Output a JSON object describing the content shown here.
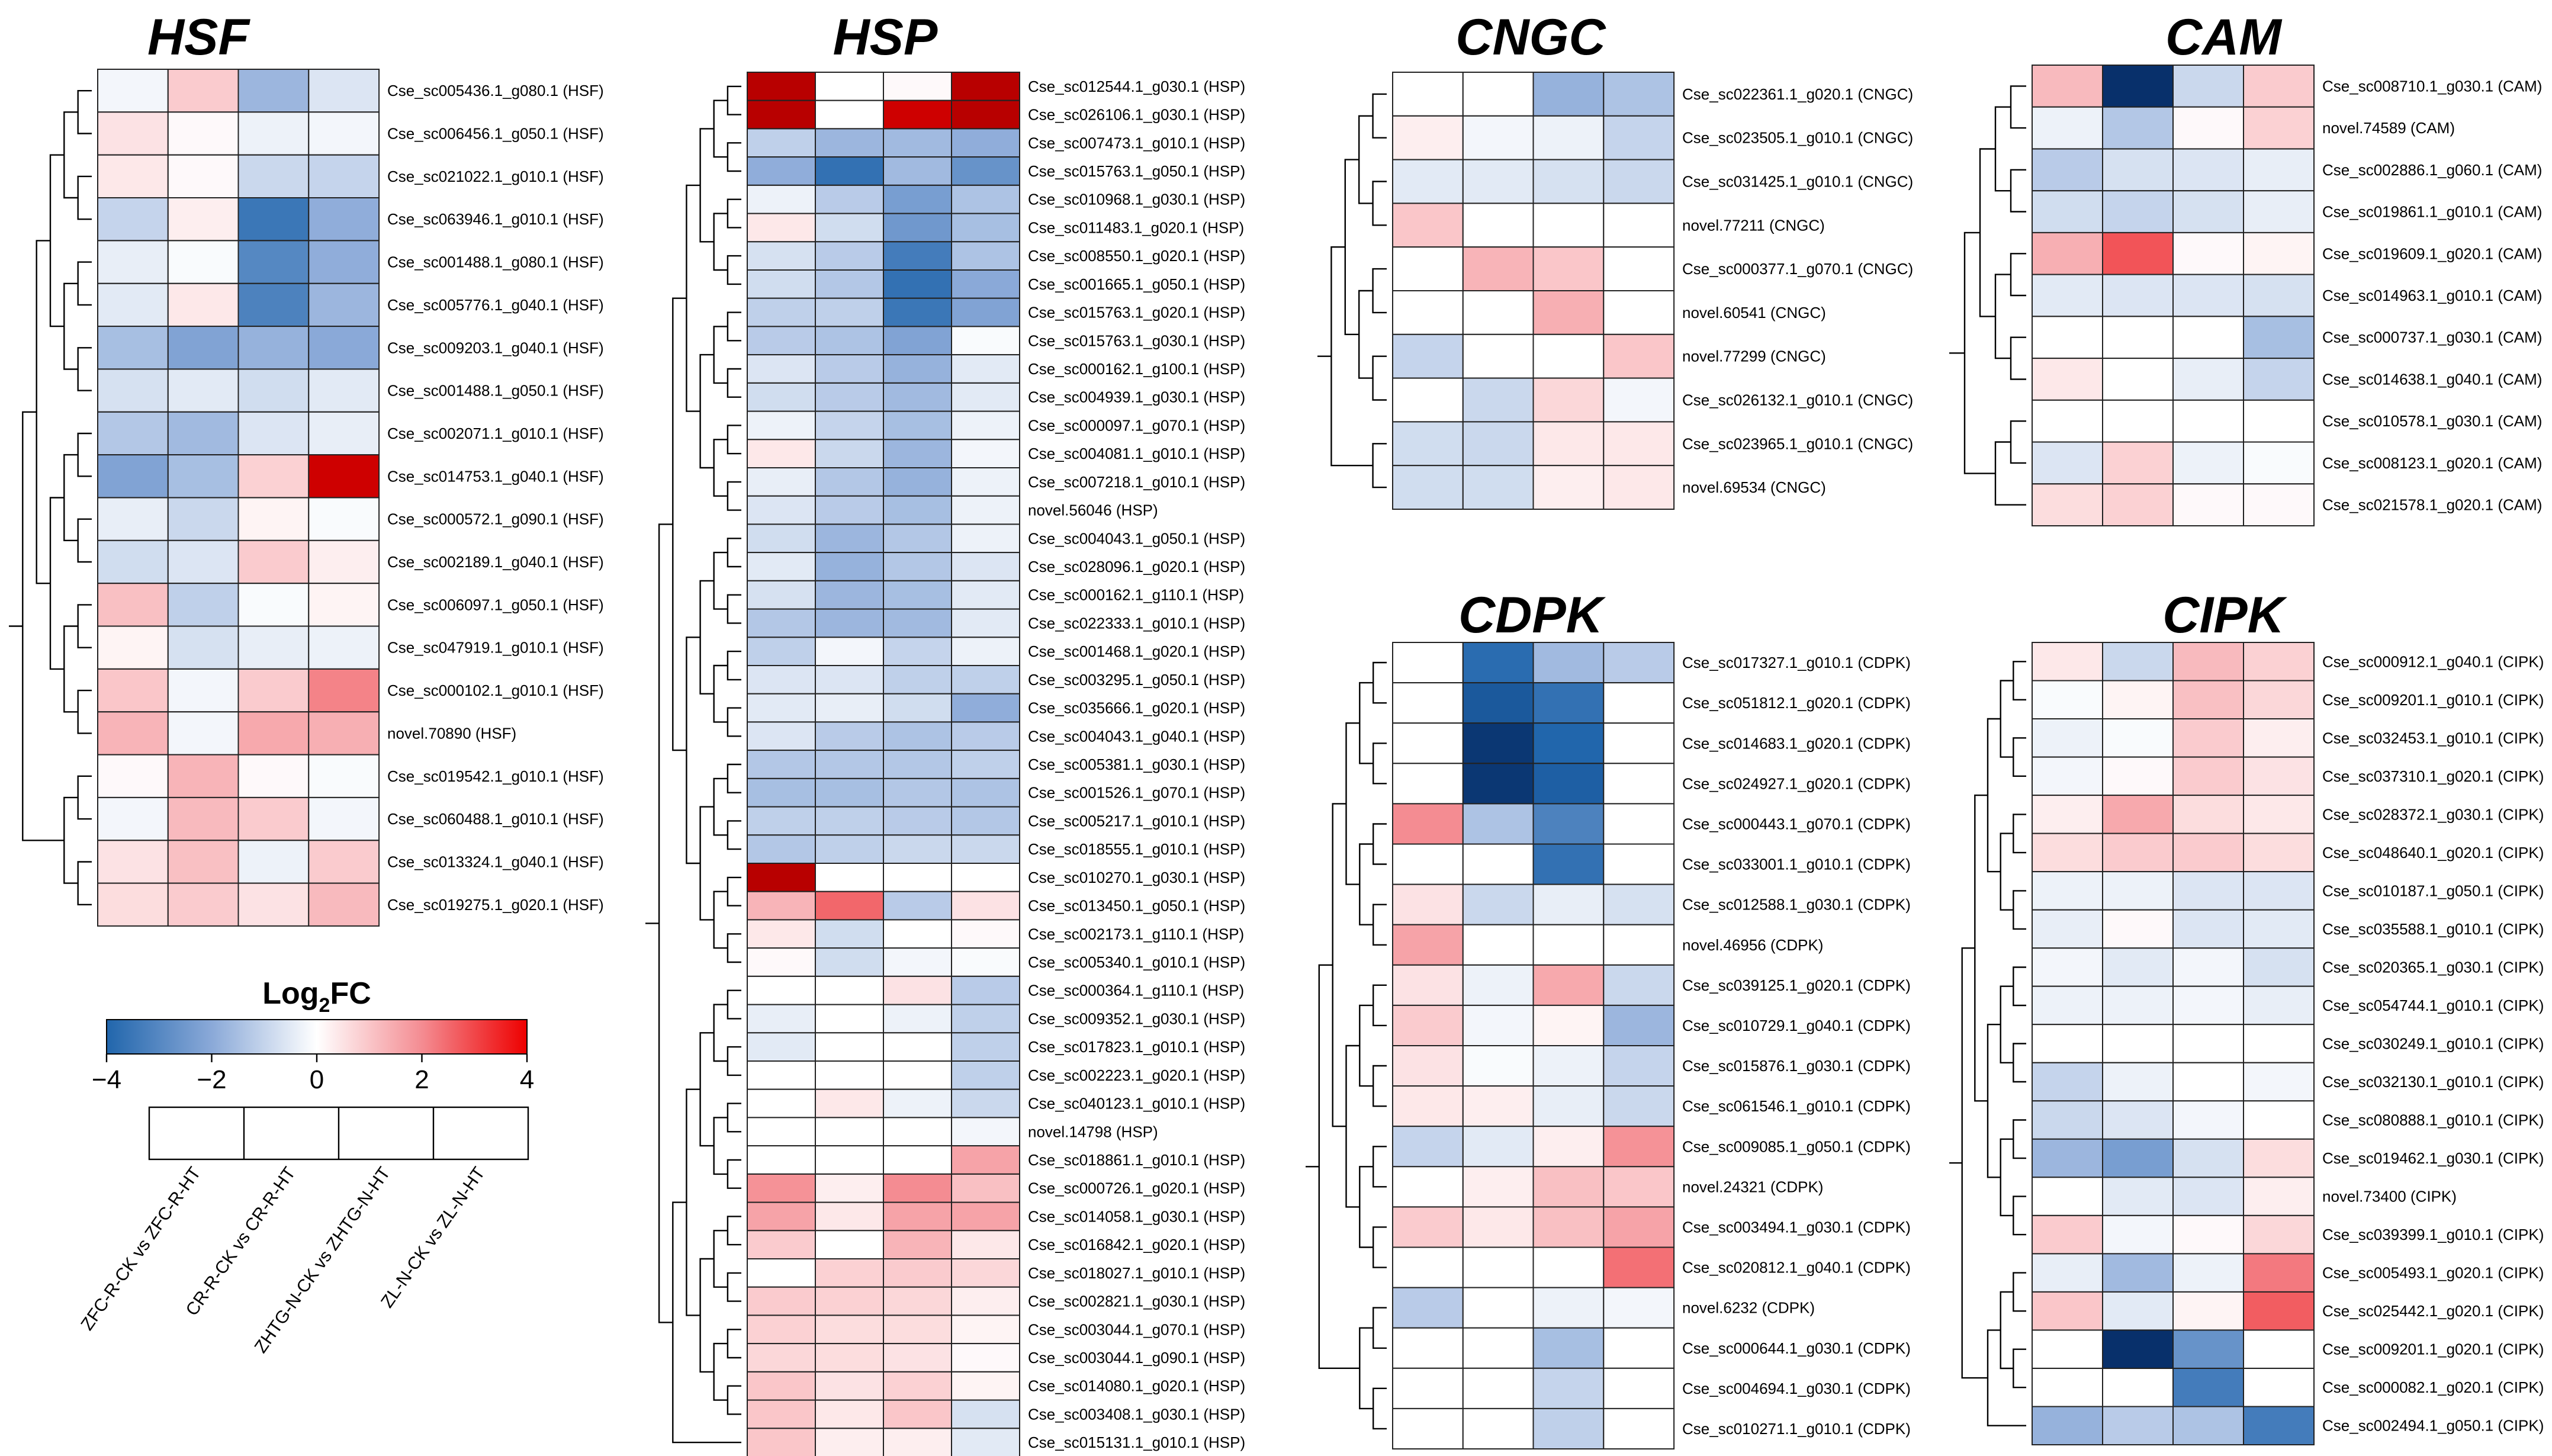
{
  "colors": {
    "low": "#08306b",
    "mid_low": "#2166ac",
    "mid": "#ffffff",
    "high": "#ee0000",
    "deep_high": "#b80000"
  },
  "chart_data": [
    {
      "type": "heatmap",
      "title": "HSF",
      "rows": [
        "Cse_sc005436.1_g080.1 (HSF)",
        "Cse_sc006456.1_g050.1 (HSF)",
        "Cse_sc021022.1_g010.1 (HSF)",
        "Cse_sc063946.1_g010.1 (HSF)",
        "Cse_sc001488.1_g080.1 (HSF)",
        "Cse_sc005776.1_g040.1 (HSF)",
        "Cse_sc009203.1_g040.1 (HSF)",
        "Cse_sc001488.1_g050.1 (HSF)",
        "Cse_sc002071.1_g010.1 (HSF)",
        "Cse_sc014753.1_g040.1 (HSF)",
        "Cse_sc000572.1_g090.1 (HSF)",
        "Cse_sc002189.1_g040.1 (HSF)",
        "Cse_sc006097.1_g050.1 (HSF)",
        "Cse_sc047919.1_g010.1 (HSF)",
        "Cse_sc000102.1_g010.1 (HSF)",
        "novel.70890 (HSF)",
        "Cse_sc019542.1_g010.1 (HSF)",
        "Cse_sc060488.1_g010.1 (HSF)",
        "Cse_sc013324.1_g040.1 (HSF)",
        "Cse_sc019275.1_g020.1 (HSF)"
      ],
      "values": [
        [
          -0.2,
          0.9,
          -1.7,
          -0.6
        ],
        [
          0.5,
          0.1,
          -0.3,
          -0.2
        ],
        [
          0.4,
          0.1,
          -0.9,
          -1.0
        ],
        [
          -1.0,
          0.3,
          -2.9,
          -1.9
        ],
        [
          -0.4,
          -0.1,
          -2.6,
          -1.9
        ],
        [
          -0.5,
          0.4,
          -2.7,
          -1.7
        ],
        [
          -1.5,
          -2.1,
          -1.8,
          -2.0
        ],
        [
          -0.7,
          -0.5,
          -0.8,
          -0.5
        ],
        [
          -1.3,
          -1.6,
          -0.6,
          -0.4
        ],
        [
          -2.1,
          -1.5,
          0.8,
          3.8
        ],
        [
          -0.4,
          -0.9,
          0.2,
          -0.1
        ],
        [
          -0.8,
          -0.6,
          0.9,
          0.3
        ],
        [
          1.1,
          -1.1,
          -0.1,
          0.2
        ],
        [
          0.2,
          -0.7,
          -0.4,
          -0.3
        ],
        [
          1.0,
          -0.2,
          0.9,
          2.1
        ],
        [
          1.3,
          -0.2,
          1.5,
          1.4
        ],
        [
          0.1,
          1.3,
          0.1,
          -0.1
        ],
        [
          -0.2,
          1.2,
          0.9,
          -0.2
        ],
        [
          0.5,
          1.1,
          -0.3,
          0.9
        ],
        [
          0.6,
          0.9,
          0.5,
          1.2
        ]
      ]
    },
    {
      "type": "heatmap",
      "title": "HSP",
      "rows": [
        "Cse_sc012544.1_g030.1 (HSP)",
        "Cse_sc026106.1_g030.1 (HSP)",
        "Cse_sc007473.1_g010.1 (HSP)",
        "Cse_sc015763.1_g050.1 (HSP)",
        "Cse_sc010968.1_g030.1 (HSP)",
        "Cse_sc011483.1_g020.1 (HSP)",
        "Cse_sc008550.1_g020.1 (HSP)",
        "Cse_sc001665.1_g050.1 (HSP)",
        "Cse_sc015763.1_g020.1 (HSP)",
        "Cse_sc015763.1_g030.1 (HSP)",
        "Cse_sc000162.1_g100.1 (HSP)",
        "Cse_sc004939.1_g030.1 (HSP)",
        "Cse_sc000097.1_g070.1 (HSP)",
        "Cse_sc004081.1_g010.1 (HSP)",
        "Cse_sc007218.1_g010.1 (HSP)",
        "novel.56046 (HSP)",
        "Cse_sc004043.1_g050.1 (HSP)",
        "Cse_sc028096.1_g020.1 (HSP)",
        "Cse_sc000162.1_g110.1 (HSP)",
        "Cse_sc022333.1_g010.1 (HSP)",
        "Cse_sc001468.1_g020.1 (HSP)",
        "Cse_sc003295.1_g050.1 (HSP)",
        "Cse_sc035666.1_g020.1 (HSP)",
        "Cse_sc004043.1_g040.1 (HSP)",
        "Cse_sc005381.1_g030.1 (HSP)",
        "Cse_sc001526.1_g070.1 (HSP)",
        "Cse_sc005217.1_g010.1 (HSP)",
        "Cse_sc018555.1_g010.1 (HSP)",
        "Cse_sc010270.1_g030.1 (HSP)",
        "Cse_sc013450.1_g050.1 (HSP)",
        "Cse_sc002173.1_g110.1 (HSP)",
        "Cse_sc005340.1_g010.1 (HSP)",
        "Cse_sc000364.1_g110.1 (HSP)",
        "Cse_sc009352.1_g030.1 (HSP)",
        "Cse_sc017823.1_g010.1 (HSP)",
        "Cse_sc002223.1_g020.1 (HSP)",
        "Cse_sc040123.1_g010.1 (HSP)",
        "novel.14798 (HSP)",
        "Cse_sc018861.1_g010.1 (HSP)",
        "Cse_sc000726.1_g020.1 (HSP)",
        "Cse_sc014058.1_g030.1 (HSP)",
        "Cse_sc016842.1_g020.1 (HSP)",
        "Cse_sc018027.1_g010.1 (HSP)",
        "Cse_sc002821.1_g030.1 (HSP)",
        "Cse_sc003044.1_g070.1 (HSP)",
        "Cse_sc003044.1_g090.1 (HSP)",
        "Cse_sc014080.1_g020.1 (HSP)",
        "Cse_sc003408.1_g030.1 (HSP)",
        "Cse_sc015131.1_g010.1 (HSP)"
      ],
      "values": [
        [
          4.0,
          0.0,
          0.1,
          4.0
        ],
        [
          4.0,
          0.0,
          3.8,
          4.0
        ],
        [
          -1.1,
          -1.7,
          -1.6,
          -1.9
        ],
        [
          -1.9,
          -3.0,
          -1.6,
          -2.4
        ],
        [
          -0.3,
          -1.2,
          -2.2,
          -1.4
        ],
        [
          0.4,
          -0.8,
          -2.3,
          -1.5
        ],
        [
          -0.7,
          -1.2,
          -2.8,
          -1.4
        ],
        [
          -0.8,
          -1.3,
          -3.0,
          -2.0
        ],
        [
          -1.1,
          -1.1,
          -2.9,
          -2.1
        ],
        [
          -1.2,
          -1.4,
          -2.1,
          -0.1
        ],
        [
          -0.6,
          -1.2,
          -1.8,
          -0.5
        ],
        [
          -0.8,
          -1.2,
          -1.6,
          -0.5
        ],
        [
          -0.3,
          -1.0,
          -1.5,
          -0.3
        ],
        [
          0.4,
          -0.9,
          -1.7,
          -0.2
        ],
        [
          -0.4,
          -1.3,
          -1.8,
          -0.3
        ],
        [
          -0.6,
          -1.2,
          -1.5,
          -0.3
        ],
        [
          -0.8,
          -1.7,
          -1.3,
          -0.3
        ],
        [
          -0.5,
          -1.8,
          -1.3,
          -0.6
        ],
        [
          -0.7,
          -1.7,
          -1.5,
          -0.5
        ],
        [
          -1.3,
          -1.7,
          -1.6,
          -0.5
        ],
        [
          -1.1,
          -0.2,
          -1.0,
          -0.3
        ],
        [
          -0.6,
          -0.6,
          -1.1,
          -1.1
        ],
        [
          -0.5,
          -0.4,
          -0.8,
          -1.9
        ],
        [
          -0.6,
          -1.2,
          -1.4,
          -1.2
        ],
        [
          -1.3,
          -1.3,
          -1.3,
          -1.1
        ],
        [
          -1.5,
          -1.5,
          -1.3,
          -1.4
        ],
        [
          -1.1,
          -1.1,
          -1.2,
          -1.3
        ],
        [
          -1.3,
          -1.1,
          -0.9,
          -0.9
        ],
        [
          4.0,
          0.0,
          0.0,
          0.0
        ],
        [
          1.3,
          2.4,
          -1.2,
          0.5
        ],
        [
          0.4,
          -0.8,
          0.0,
          0.1
        ],
        [
          0.1,
          -0.8,
          -0.2,
          -0.1
        ],
        [
          0.0,
          0.0,
          0.5,
          -1.2
        ],
        [
          -0.4,
          0.0,
          -0.3,
          -1.1
        ],
        [
          -0.5,
          0.0,
          0.0,
          -1.1
        ],
        [
          0.0,
          0.0,
          0.0,
          -1.1
        ],
        [
          0.0,
          0.4,
          -0.3,
          -0.9
        ],
        [
          0.0,
          0.0,
          0.0,
          -0.2
        ],
        [
          0.0,
          0.0,
          0.0,
          1.6
        ],
        [
          1.9,
          0.3,
          2.0,
          1.1
        ],
        [
          1.6,
          0.4,
          1.6,
          1.6
        ],
        [
          0.9,
          0.0,
          1.3,
          0.4
        ],
        [
          0.0,
          0.8,
          0.9,
          0.7
        ],
        [
          0.9,
          0.8,
          0.7,
          0.3
        ],
        [
          0.8,
          0.6,
          0.6,
          0.2
        ],
        [
          0.7,
          0.6,
          0.5,
          0.1
        ],
        [
          1.0,
          0.5,
          0.8,
          0.2
        ],
        [
          1.0,
          0.4,
          1.0,
          -0.7
        ],
        [
          1.0,
          0.3,
          0.3,
          -0.5
        ]
      ]
    },
    {
      "type": "heatmap",
      "title": "CNGC",
      "rows": [
        "Cse_sc022361.1_g020.1 (CNGC)",
        "Cse_sc023505.1_g010.1 (CNGC)",
        "Cse_sc031425.1_g010.1 (CNGC)",
        "novel.77211 (CNGC)",
        "Cse_sc000377.1_g070.1 (CNGC)",
        "novel.60541 (CNGC)",
        "novel.77299 (CNGC)",
        "Cse_sc026132.1_g010.1 (CNGC)",
        "Cse_sc023965.1_g010.1 (CNGC)",
        "novel.69534 (CNGC)"
      ],
      "values": [
        [
          0.0,
          0.0,
          -1.8,
          -1.4
        ],
        [
          0.3,
          -0.2,
          -0.3,
          -1.0
        ],
        [
          -0.5,
          -0.5,
          -0.7,
          -0.9
        ],
        [
          1.0,
          0.0,
          0.0,
          0.0
        ],
        [
          0.0,
          1.3,
          1.0,
          0.0
        ],
        [
          0.0,
          0.0,
          1.4,
          0.0
        ],
        [
          -1.0,
          0.0,
          0.0,
          1.0
        ],
        [
          0.0,
          -0.9,
          0.7,
          -0.2
        ],
        [
          -0.8,
          -0.9,
          0.4,
          0.4
        ],
        [
          -0.8,
          -0.8,
          0.3,
          0.4
        ]
      ]
    },
    {
      "type": "heatmap",
      "title": "CAM",
      "rows": [
        "Cse_sc008710.1_g030.1 (CAM)",
        "novel.74589 (CAM)",
        "Cse_sc002886.1_g060.1 (CAM)",
        "Cse_sc019861.1_g010.1 (CAM)",
        "Cse_sc019609.1_g020.1 (CAM)",
        "Cse_sc014963.1_g010.1 (CAM)",
        "Cse_sc000737.1_g030.1 (CAM)",
        "Cse_sc014638.1_g040.1 (CAM)",
        "Cse_sc010578.1_g030.1 (CAM)",
        "Cse_sc008123.1_g020.1 (CAM)",
        "Cse_sc021578.1_g020.1 (CAM)"
      ],
      "values": [
        [
          1.2,
          -4.0,
          -0.9,
          0.9
        ],
        [
          -0.3,
          -1.3,
          0.1,
          0.8
        ],
        [
          -1.2,
          -0.7,
          -0.6,
          -0.4
        ],
        [
          -0.8,
          -1.0,
          -0.7,
          -0.4
        ],
        [
          1.4,
          2.6,
          0.1,
          0.2
        ],
        [
          -0.5,
          -0.6,
          -0.6,
          -0.7
        ],
        [
          0.0,
          0.0,
          0.0,
          -1.5
        ],
        [
          0.4,
          0.0,
          -0.4,
          -1.0
        ],
        [
          0.0,
          0.0,
          0.0,
          0.0
        ],
        [
          -0.6,
          0.8,
          -0.3,
          -0.1
        ],
        [
          0.6,
          0.8,
          0.1,
          0.1
        ]
      ]
    },
    {
      "type": "heatmap",
      "title": "CDPK",
      "rows": [
        "Cse_sc017327.1_g010.1 (CDPK)",
        "Cse_sc051812.1_g020.1 (CDPK)",
        "Cse_sc014683.1_g020.1 (CDPK)",
        "Cse_sc024927.1_g020.1 (CDPK)",
        "Cse_sc000443.1_g070.1 (CDPK)",
        "Cse_sc033001.1_g010.1 (CDPK)",
        "Cse_sc012588.1_g030.1 (CDPK)",
        "novel.46956 (CDPK)",
        "Cse_sc039125.1_g020.1 (CDPK)",
        "Cse_sc010729.1_g040.1 (CDPK)",
        "Cse_sc015876.1_g030.1 (CDPK)",
        "Cse_sc061546.1_g010.1 (CDPK)",
        "Cse_sc009085.1_g050.1 (CDPK)",
        "novel.24321 (CDPK)",
        "Cse_sc003494.1_g030.1 (CDPK)",
        "Cse_sc020812.1_g040.1 (CDPK)",
        "novel.6232 (CDPK)",
        "Cse_sc000644.1_g030.1 (CDPK)",
        "Cse_sc004694.1_g030.1 (CDPK)",
        "Cse_sc010271.1_g010.1 (CDPK)"
      ],
      "values": [
        [
          0.0,
          -3.1,
          -1.6,
          -1.2
        ],
        [
          0.0,
          -3.4,
          -3.0,
          0.0
        ],
        [
          0.0,
          -3.9,
          -3.2,
          0.0
        ],
        [
          0.0,
          -3.9,
          -3.3,
          0.0
        ],
        [
          2.0,
          -1.4,
          -2.7,
          0.0
        ],
        [
          0.0,
          0.0,
          -3.0,
          0.0
        ],
        [
          0.5,
          -0.9,
          -0.4,
          -0.7
        ],
        [
          1.6,
          0.0,
          0.0,
          0.0
        ],
        [
          0.5,
          -0.3,
          1.5,
          -0.9
        ],
        [
          0.9,
          -0.2,
          0.2,
          -1.7
        ],
        [
          0.5,
          -0.1,
          -0.3,
          -1.0
        ],
        [
          0.4,
          0.3,
          -0.4,
          -0.9
        ],
        [
          -1.0,
          -0.5,
          0.3,
          1.9
        ],
        [
          0.0,
          0.3,
          1.1,
          1.0
        ],
        [
          0.9,
          0.4,
          1.1,
          1.6
        ],
        [
          0.0,
          0.0,
          0.0,
          2.3
        ],
        [
          -1.2,
          0.0,
          -0.3,
          -0.2
        ],
        [
          0.0,
          0.0,
          -1.5,
          0.0
        ],
        [
          0.0,
          0.0,
          -1.0,
          0.0
        ],
        [
          0.0,
          0.0,
          -1.1,
          0.0
        ]
      ]
    },
    {
      "type": "heatmap",
      "title": "CIPK",
      "rows": [
        "Cse_sc000912.1_g040.1 (CIPK)",
        "Cse_sc009201.1_g010.1 (CIPK)",
        "Cse_sc032453.1_g010.1 (CIPK)",
        "Cse_sc037310.1_g020.1 (CIPK)",
        "Cse_sc028372.1_g030.1 (CIPK)",
        "Cse_sc048640.1_g020.1 (CIPK)",
        "Cse_sc010187.1_g050.1 (CIPK)",
        "Cse_sc035588.1_g010.1 (CIPK)",
        "Cse_sc020365.1_g030.1 (CIPK)",
        "Cse_sc054744.1_g010.1 (CIPK)",
        "Cse_sc030249.1_g010.1 (CIPK)",
        "Cse_sc032130.1_g010.1 (CIPK)",
        "Cse_sc080888.1_g010.1 (CIPK)",
        "Cse_sc019462.1_g030.1 (CIPK)",
        "novel.73400 (CIPK)",
        "Cse_sc039399.1_g010.1 (CIPK)",
        "Cse_sc005493.1_g020.1 (CIPK)",
        "Cse_sc025442.1_g020.1 (CIPK)",
        "Cse_sc009201.1_g020.1 (CIPK)",
        "Cse_sc000082.1_g020.1 (CIPK)",
        "Cse_sc002494.1_g050.1 (CIPK)"
      ],
      "values": [
        [
          0.4,
          -0.9,
          1.2,
          0.8
        ],
        [
          -0.1,
          0.2,
          1.1,
          0.7
        ],
        [
          -0.3,
          -0.1,
          0.9,
          0.3
        ],
        [
          -0.2,
          0.1,
          0.9,
          0.5
        ],
        [
          0.3,
          1.5,
          0.6,
          0.4
        ],
        [
          0.6,
          0.9,
          0.9,
          0.6
        ],
        [
          -0.3,
          -0.3,
          -0.6,
          -0.6
        ],
        [
          -0.4,
          0.1,
          -0.6,
          -0.5
        ],
        [
          -0.2,
          -0.5,
          -0.2,
          -0.7
        ],
        [
          -0.3,
          -0.3,
          -0.2,
          -0.4
        ],
        [
          0.0,
          0.0,
          0.0,
          0.0
        ],
        [
          -1.0,
          -0.3,
          0.0,
          -0.2
        ],
        [
          -0.9,
          -0.6,
          -0.2,
          0.0
        ],
        [
          -1.7,
          -2.2,
          -0.7,
          0.6
        ],
        [
          0.0,
          -0.5,
          -0.6,
          0.3
        ],
        [
          0.9,
          -0.2,
          0.1,
          0.7
        ],
        [
          -0.4,
          -1.6,
          -0.3,
          2.2
        ],
        [
          1.0,
          -0.5,
          0.2,
          2.5
        ],
        [
          0.0,
          -4.0,
          -2.4,
          0.0
        ],
        [
          0.0,
          0.0,
          -2.8,
          0.0
        ],
        [
          -1.8,
          -1.2,
          -1.4,
          -2.8
        ]
      ]
    }
  ],
  "colorbar": {
    "title": "Log",
    "title_sub": "2",
    "title_suffix": "FC",
    "range": [
      -4,
      4
    ],
    "ticks": [
      "−4",
      "−2",
      "0",
      "2",
      "4"
    ]
  },
  "columns": [
    "ZFC-R-CK vs ZFC-R-HT",
    "CR-R-CK vs CR-R-HT",
    "ZHTG-N-CK vs ZHTG-N-HT",
    "ZL-N-CK vs ZL-N-HT"
  ]
}
